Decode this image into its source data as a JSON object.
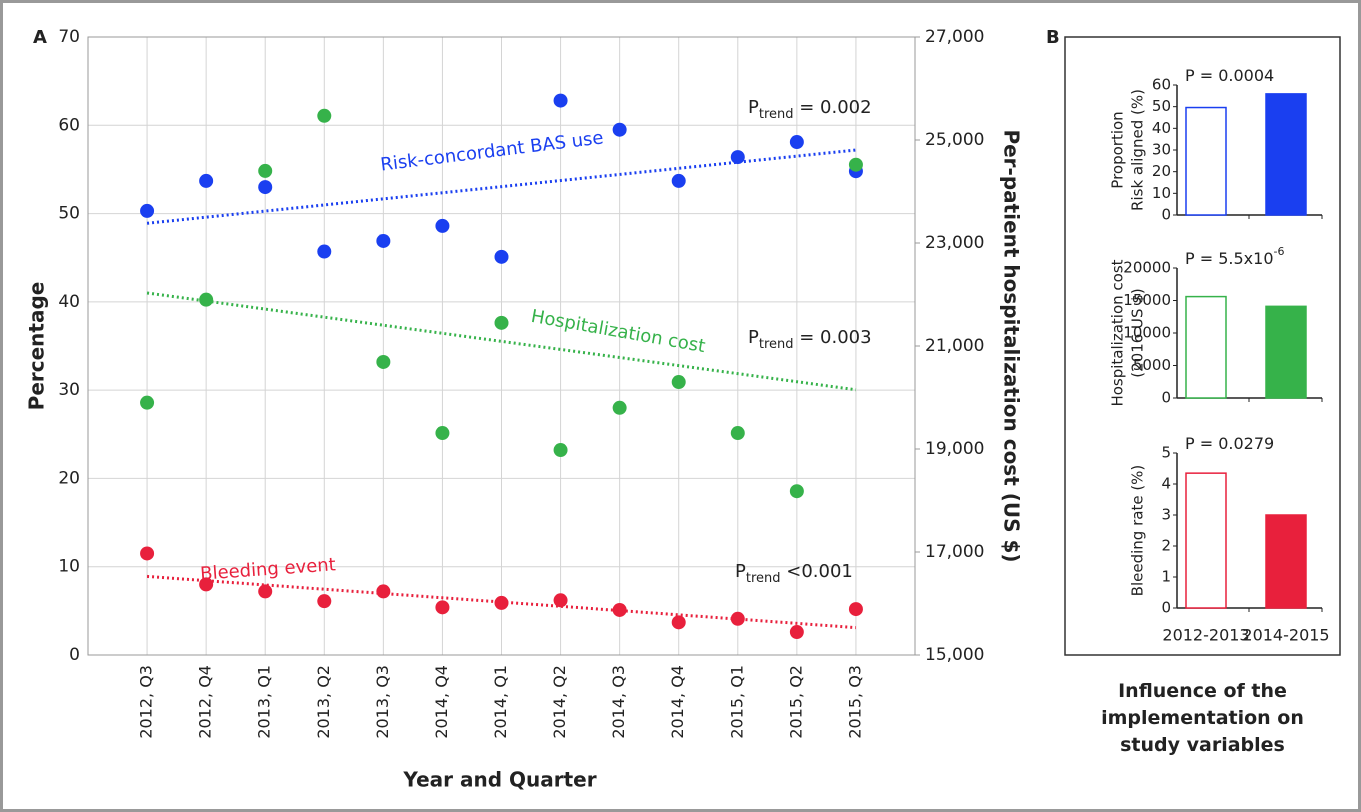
{
  "panels": {
    "a_label": "A",
    "b_label": "B",
    "b_caption": [
      "Influence of the",
      "implementation on",
      "study variables"
    ]
  },
  "chart_data": [
    {
      "type": "scatter",
      "xlabel": "Year and Quarter",
      "ylabel": "Percentage",
      "y2label": "Per-patient hospitalization cost (US $)",
      "categories": [
        "2012, Q3",
        "2012, Q4",
        "2013, Q1",
        "2013, Q2",
        "2013, Q3",
        "2014, Q4",
        "2014, Q1",
        "2014, Q2",
        "2014, Q3",
        "2014, Q4",
        "2015, Q1",
        "2015, Q2",
        "2015, Q3"
      ],
      "ylim": [
        0,
        70
      ],
      "yticks": [
        0,
        10,
        20,
        30,
        40,
        50,
        60,
        70
      ],
      "y2lim": [
        15000,
        27000
      ],
      "y2ticks": [
        {
          "value": 15000,
          "label": "15,000"
        },
        {
          "value": 17000,
          "label": "17,000"
        },
        {
          "value": 19000,
          "label": "19,000"
        },
        {
          "value": 21000,
          "label": "21,000"
        },
        {
          "value": 23000,
          "label": "23,000"
        },
        {
          "value": 25000,
          "label": "25,000"
        },
        {
          "value": 27000,
          "label": "27,000"
        }
      ],
      "grid": true,
      "series": [
        {
          "name": "Risk-concordant BAS use",
          "color": "#1a3ff0",
          "axis": "y",
          "values": [
            50.3,
            53.7,
            53.0,
            45.7,
            46.9,
            48.6,
            45.1,
            62.8,
            59.5,
            53.7,
            56.4,
            58.1,
            54.8
          ],
          "trend": [
            48.9,
            57.2
          ],
          "p_trend": {
            "p": "P",
            "sub": "trend",
            "rest": " = 0.002"
          }
        },
        {
          "name": "Hospitalization cost",
          "color": "#36b24a",
          "axis": "y2",
          "values": [
            19900,
            21900,
            24400,
            25470,
            20690,
            19310,
            21450,
            18980,
            19800,
            20300,
            19310,
            18180,
            24520
          ],
          "trend": [
            22030,
            20150
          ],
          "p_trend": {
            "p": "P",
            "sub": "trend",
            "rest": " = 0.003"
          }
        },
        {
          "name": "Bleeding event",
          "color": "#e8203c",
          "axis": "y",
          "values": [
            11.5,
            8.0,
            7.2,
            6.1,
            7.2,
            5.4,
            5.9,
            6.2,
            5.1,
            3.7,
            4.1,
            2.6,
            5.2
          ],
          "trend": [
            8.9,
            3.1
          ],
          "p_trend": {
            "p": "P",
            "sub": "trend",
            "rest": " <0.001"
          }
        }
      ]
    },
    {
      "type": "bar",
      "title": "P = 0.0004",
      "ylabel": [
        "Proportion",
        "Risk aligned (%)"
      ],
      "categories": [
        null,
        null
      ],
      "values": [
        49.6,
        55.9
      ],
      "color": "#1a3ff0",
      "fills": [
        "outline",
        "solid"
      ],
      "ylim": [
        0,
        60
      ],
      "yticks": [
        0,
        10,
        20,
        30,
        40,
        50,
        60
      ]
    },
    {
      "type": "bar",
      "title": "P = 5.5x10",
      "title_sup": "-6",
      "ylabel": [
        "Hospitalization cost",
        "(2016 US $)"
      ],
      "categories": [
        null,
        null
      ],
      "values": [
        15600,
        14100
      ],
      "color": "#36b24a",
      "fills": [
        "outline",
        "solid"
      ],
      "ylim": [
        0,
        20000
      ],
      "yticks": [
        0,
        5000,
        10000,
        15000,
        20000
      ]
    },
    {
      "type": "bar",
      "title": "P = 0.0279",
      "ylabel": [
        "Bleeding rate (%)"
      ],
      "categories": [
        "2012-2013",
        "2014-2015"
      ],
      "values": [
        4.35,
        3.0
      ],
      "color": "#e8203c",
      "fills": [
        "outline",
        "solid"
      ],
      "ylim": [
        0,
        5
      ],
      "yticks": [
        0,
        1,
        2,
        3,
        4,
        5
      ]
    }
  ]
}
